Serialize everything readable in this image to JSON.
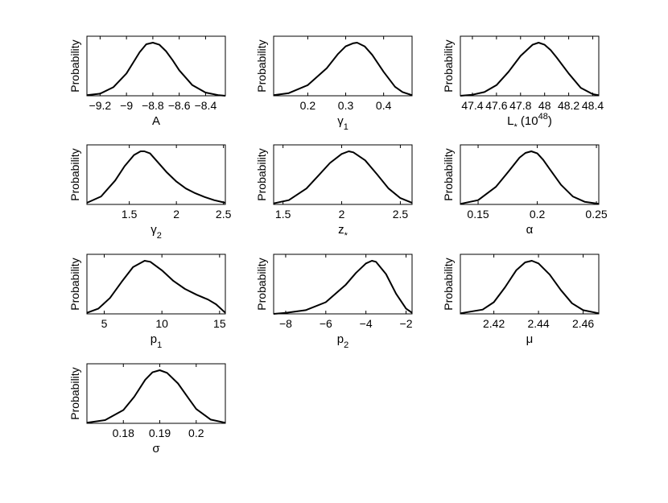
{
  "chart_data": [
    {
      "type": "line",
      "xlabel": "A",
      "ylabel": "Probability",
      "xlim": [
        -9.3,
        -8.25
      ],
      "xticks": [
        -9.2,
        -9,
        -8.8,
        -8.6,
        -8.4
      ],
      "xtick_labels": [
        "−9.2",
        "−9",
        "−8.8",
        "−8.6",
        "−8.4"
      ],
      "series": [
        {
          "x": [
            -9.3,
            -9.2,
            -9.1,
            -9.0,
            -8.95,
            -8.9,
            -8.85,
            -8.8,
            -8.75,
            -8.7,
            -8.65,
            -8.6,
            -8.5,
            -8.4,
            -8.3,
            -8.25
          ],
          "y": [
            0.01,
            0.04,
            0.16,
            0.42,
            0.62,
            0.82,
            0.97,
            1.0,
            0.96,
            0.84,
            0.67,
            0.48,
            0.2,
            0.06,
            0.01,
            0.0
          ]
        }
      ]
    },
    {
      "type": "line",
      "xlabel": "γ",
      "xlabel_sub": "1",
      "ylabel": "Probability",
      "xlim": [
        0.11,
        0.475
      ],
      "xticks": [
        0.2,
        0.3,
        0.4
      ],
      "xtick_labels": [
        "0.2",
        "0.3",
        "0.4"
      ],
      "series": [
        {
          "x": [
            0.11,
            0.15,
            0.2,
            0.25,
            0.28,
            0.3,
            0.32,
            0.33,
            0.35,
            0.37,
            0.4,
            0.43,
            0.45,
            0.475
          ],
          "y": [
            0.01,
            0.05,
            0.2,
            0.52,
            0.79,
            0.93,
            0.99,
            1.0,
            0.93,
            0.77,
            0.45,
            0.17,
            0.07,
            0.01
          ]
        }
      ]
    },
    {
      "type": "line",
      "xlabel": "L",
      "xlabel_sub": "*",
      "xlabel_suffix": " (10",
      "xlabel_sup": "48",
      "xlabel_end": ")",
      "ylabel": "Probability",
      "xlim": [
        47.3,
        48.45
      ],
      "xticks": [
        47.4,
        47.6,
        47.8,
        48,
        48.2,
        48.4
      ],
      "xtick_labels": [
        "47.4",
        "47.6",
        "47.8",
        "48",
        "48.2",
        "48.4"
      ],
      "series": [
        {
          "x": [
            47.3,
            47.4,
            47.5,
            47.6,
            47.7,
            47.8,
            47.9,
            47.95,
            48.0,
            48.05,
            48.1,
            48.2,
            48.3,
            48.4,
            48.45
          ],
          "y": [
            0.0,
            0.02,
            0.07,
            0.2,
            0.45,
            0.75,
            0.96,
            1.0,
            0.96,
            0.86,
            0.72,
            0.42,
            0.15,
            0.03,
            0.01
          ]
        }
      ]
    },
    {
      "type": "line",
      "xlabel": "γ",
      "xlabel_sub": "2",
      "ylabel": "Probability",
      "xlim": [
        1.05,
        2.52
      ],
      "xticks": [
        1.5,
        2,
        2.5
      ],
      "xtick_labels": [
        "1.5",
        "2",
        "2.5"
      ],
      "series": [
        {
          "x": [
            1.05,
            1.2,
            1.35,
            1.45,
            1.55,
            1.62,
            1.66,
            1.72,
            1.8,
            1.9,
            2.0,
            2.1,
            2.2,
            2.3,
            2.4,
            2.52
          ],
          "y": [
            0.03,
            0.15,
            0.45,
            0.72,
            0.93,
            1.0,
            1.0,
            0.96,
            0.8,
            0.6,
            0.43,
            0.3,
            0.21,
            0.14,
            0.08,
            0.03
          ]
        }
      ]
    },
    {
      "type": "line",
      "xlabel": "z",
      "xlabel_sub": "*",
      "ylabel": "Probability",
      "xlim": [
        1.42,
        2.6
      ],
      "xticks": [
        1.5,
        2,
        2.5
      ],
      "xtick_labels": [
        "1.5",
        "2",
        "2.5"
      ],
      "series": [
        {
          "x": [
            1.42,
            1.55,
            1.7,
            1.8,
            1.9,
            2.0,
            2.06,
            2.1,
            2.2,
            2.3,
            2.4,
            2.5,
            2.6
          ],
          "y": [
            0.02,
            0.08,
            0.3,
            0.54,
            0.78,
            0.95,
            1.0,
            0.98,
            0.83,
            0.57,
            0.3,
            0.12,
            0.03
          ]
        }
      ]
    },
    {
      "type": "line",
      "xlabel": "α",
      "ylabel": "Probability",
      "xlim": [
        0.135,
        0.252
      ],
      "xticks": [
        0.15,
        0.2,
        0.25
      ],
      "xtick_labels": [
        "0.15",
        "0.2",
        "0.25"
      ],
      "series": [
        {
          "x": [
            0.135,
            0.15,
            0.165,
            0.175,
            0.185,
            0.19,
            0.195,
            0.2,
            0.205,
            0.21,
            0.22,
            0.23,
            0.24,
            0.252
          ],
          "y": [
            0.01,
            0.08,
            0.33,
            0.6,
            0.88,
            0.97,
            1.0,
            0.96,
            0.84,
            0.68,
            0.37,
            0.15,
            0.05,
            0.01
          ]
        }
      ]
    },
    {
      "type": "line",
      "xlabel": "p",
      "xlabel_sub": "1",
      "ylabel": "Probability",
      "xlim": [
        3.5,
        15.5
      ],
      "xticks": [
        5,
        10,
        15
      ],
      "xtick_labels": [
        "5",
        "10",
        "15"
      ],
      "series": [
        {
          "x": [
            3.5,
            4.5,
            5.5,
            6.5,
            7.5,
            8.5,
            9.0,
            10.0,
            11.0,
            12.0,
            13.0,
            14.0,
            14.7,
            15.5
          ],
          "y": [
            0.02,
            0.1,
            0.3,
            0.6,
            0.88,
            1.0,
            0.98,
            0.82,
            0.62,
            0.47,
            0.36,
            0.27,
            0.18,
            0.02
          ]
        }
      ]
    },
    {
      "type": "line",
      "xlabel": "p",
      "xlabel_sub": "2",
      "ylabel": "Probability",
      "xlim": [
        -8.6,
        -1.7
      ],
      "xticks": [
        -8,
        -6,
        -4,
        -2
      ],
      "xtick_labels": [
        "−8",
        "−6",
        "−4",
        "−2"
      ],
      "series": [
        {
          "x": [
            -8.6,
            -8.0,
            -7.0,
            -6.0,
            -5.0,
            -4.5,
            -4.0,
            -3.7,
            -3.5,
            -3.0,
            -2.5,
            -2.0,
            -1.7
          ],
          "y": [
            0.0,
            0.02,
            0.07,
            0.22,
            0.55,
            0.77,
            0.95,
            1.0,
            0.98,
            0.75,
            0.38,
            0.1,
            0.02
          ]
        }
      ]
    },
    {
      "type": "line",
      "xlabel": "μ",
      "ylabel": "Probability",
      "xlim": [
        2.405,
        2.467
      ],
      "xticks": [
        2.42,
        2.44,
        2.46
      ],
      "xtick_labels": [
        "2.42",
        "2.44",
        "2.46"
      ],
      "series": [
        {
          "x": [
            2.405,
            2.415,
            2.42,
            2.425,
            2.43,
            2.434,
            2.437,
            2.44,
            2.445,
            2.45,
            2.455,
            2.46,
            2.467
          ],
          "y": [
            0.01,
            0.08,
            0.22,
            0.5,
            0.82,
            0.97,
            1.0,
            0.95,
            0.74,
            0.45,
            0.2,
            0.07,
            0.01
          ]
        }
      ]
    },
    {
      "type": "line",
      "xlabel": "σ",
      "ylabel": "Probability",
      "xlim": [
        0.17,
        0.208
      ],
      "xticks": [
        0.18,
        0.19,
        0.2
      ],
      "xtick_labels": [
        "0.18",
        "0.19",
        "0.2"
      ],
      "series": [
        {
          "x": [
            0.17,
            0.175,
            0.18,
            0.183,
            0.186,
            0.188,
            0.19,
            0.192,
            0.195,
            0.198,
            0.2,
            0.204,
            0.208
          ],
          "y": [
            0.01,
            0.06,
            0.25,
            0.5,
            0.82,
            0.96,
            1.0,
            0.95,
            0.75,
            0.46,
            0.27,
            0.07,
            0.01
          ]
        }
      ]
    }
  ]
}
